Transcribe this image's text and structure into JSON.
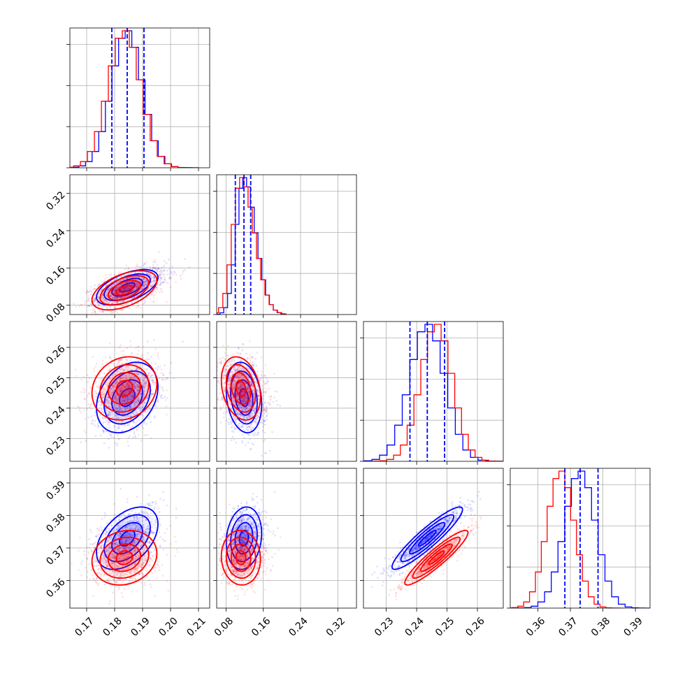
{
  "chart_data": {
    "type": "corner",
    "title": "",
    "parameters": [
      {
        "range": [
          0.164,
          0.214
        ],
        "ticks": [
          0.17,
          0.18,
          0.19,
          0.2,
          0.21
        ],
        "tick_labels": [
          "0.17",
          "0.18",
          "0.19",
          "0.20",
          "0.21"
        ]
      },
      {
        "range": [
          0.06,
          0.36
        ],
        "ticks": [
          0.08,
          0.16,
          0.24,
          0.32
        ],
        "tick_labels": [
          "0.08",
          "0.16",
          "0.24",
          "0.32"
        ]
      },
      {
        "range": [
          0.2225,
          0.2685
        ],
        "ticks": [
          0.23,
          0.24,
          0.25,
          0.26
        ],
        "tick_labels": [
          "0.23",
          "0.24",
          "0.25",
          "0.26"
        ]
      },
      {
        "range": [
          0.3515,
          0.3945
        ],
        "ticks": [
          0.36,
          0.37,
          0.38,
          0.39
        ],
        "tick_labels": [
          "0.36",
          "0.37",
          "0.38",
          "0.39"
        ]
      }
    ],
    "series": [
      {
        "color": "#0000ff",
        "means": [
          0.1845,
          0.1185,
          0.2435,
          0.373
        ],
        "sigmas": [
          0.0055,
          0.019,
          0.0058,
          0.0048
        ],
        "correlations": [
          [
            1,
            0.55,
            0.3,
            0.45
          ],
          [
            0.55,
            1,
            -0.2,
            0.15
          ],
          [
            0.3,
            -0.2,
            1,
            0.92
          ],
          [
            0.45,
            0.15,
            0.92,
            1
          ]
        ],
        "quantile_lines": [
          [
            0.179,
            0.1845,
            0.1905
          ],
          [
            0.1,
            0.1185,
            0.133
          ],
          [
            0.2378,
            0.2435,
            0.2492
          ],
          [
            0.3683,
            0.373,
            0.3785
          ]
        ]
      },
      {
        "color": "#ff0000",
        "means": [
          0.1835,
          0.112,
          0.2465,
          0.367
        ],
        "sigmas": [
          0.0058,
          0.021,
          0.0052,
          0.0042
        ],
        "correlations": [
          [
            1,
            0.5,
            0.15,
            0.15
          ],
          [
            0.5,
            1,
            -0.25,
            -0.05
          ],
          [
            0.15,
            -0.25,
            1,
            0.92
          ],
          [
            0.15,
            -0.05,
            0.92,
            1
          ]
        ],
        "quantile_lines": []
      }
    ],
    "histogram_bins": 20,
    "contour_levels": [
      0.5,
      1.0,
      1.5,
      2.0
    ],
    "grid": true,
    "legend": "none"
  }
}
